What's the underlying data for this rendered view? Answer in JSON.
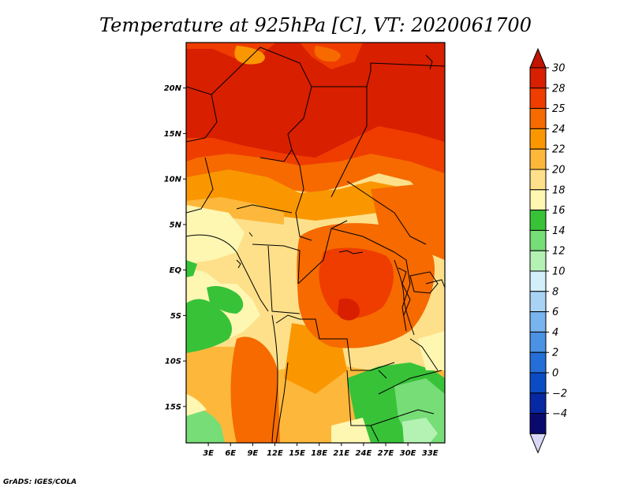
{
  "title": "Temperature at 925hPa [C], VT: 2020061700",
  "credit": "GrADS: IGES/COLA",
  "lat_ticks": [
    "20N",
    "15N",
    "10N",
    "5N",
    "EQ",
    "5S",
    "10S",
    "15S"
  ],
  "lat_values": [
    20,
    15,
    10,
    5,
    0,
    -5,
    -10,
    -15
  ],
  "lon_ticks": [
    "3E",
    "6E",
    "9E",
    "12E",
    "15E",
    "18E",
    "21E",
    "24E",
    "27E",
    "30E",
    "33E"
  ],
  "lon_values": [
    3,
    6,
    9,
    12,
    15,
    18,
    21,
    24,
    27,
    30,
    33
  ],
  "map_extent": {
    "lon": [
      0,
      35
    ],
    "lat": [
      -19,
      25
    ]
  },
  "colorbar": {
    "labels": [
      "30",
      "28",
      "25",
      "24",
      "22",
      "20",
      "18",
      "16",
      "14",
      "12",
      "10",
      "8",
      "6",
      "4",
      "2",
      "0",
      "−2",
      "−4"
    ],
    "colors": [
      "#d81f00",
      "#ef3d00",
      "#f66a00",
      "#fa9700",
      "#fdb83c",
      "#fee08a",
      "#fdf7b2",
      "#38c238",
      "#77dd77",
      "#b4f2b4",
      "#d2f0fa",
      "#a8d3f5",
      "#78b4ee",
      "#4b91e4",
      "#256ed8",
      "#0b4bc4",
      "#0728a3",
      "#0a0a6e"
    ],
    "top_arrow_color": "#c21400",
    "bottom_arrow_color": "#d8d8f6"
  }
}
